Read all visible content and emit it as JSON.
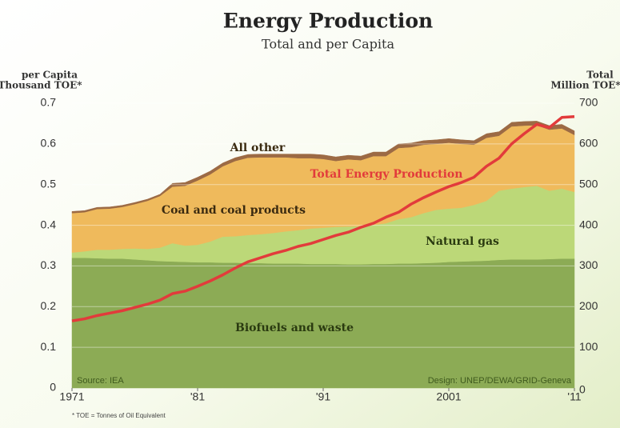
{
  "chart_data": {
    "type": "stacked-area-line",
    "title": "Energy Production",
    "subtitle": "Total and per Capita",
    "y_label": [
      "per Capita",
      "Thousand TOE*"
    ],
    "y2_label": [
      "Total",
      "Million TOE*"
    ],
    "source": "Source: IEA",
    "credit": "Design: UNEP/DEWA/GRID-Geneva",
    "footnote": "* TOE = Tonnes of Oil Equivalent",
    "x": [
      1971,
      1972,
      1973,
      1974,
      1975,
      1976,
      1977,
      1978,
      1979,
      1980,
      1981,
      1982,
      1983,
      1984,
      1985,
      1986,
      1987,
      1988,
      1989,
      1990,
      1991,
      1992,
      1993,
      1994,
      1995,
      1996,
      1997,
      1998,
      1999,
      2000,
      2001,
      2002,
      2003,
      2004,
      2005,
      2006,
      2007,
      2008,
      2009,
      2010,
      2011
    ],
    "xlim": [
      1971,
      2011
    ],
    "xticks": [
      1971,
      {
        "value": 1981,
        "label": "'81"
      },
      {
        "value": 1991,
        "label": "'91"
      },
      2001,
      {
        "value": 2011,
        "label": "'11"
      }
    ],
    "ylim": [
      0,
      0.7
    ],
    "yticks": [
      0,
      0.1,
      0.2,
      0.3,
      0.4,
      0.5,
      0.6,
      0.7
    ],
    "y2lim": [
      0,
      700
    ],
    "y2ticks": [
      0,
      100,
      200,
      300,
      400,
      500,
      600,
      700
    ],
    "grid": true,
    "series": [
      {
        "name": "Biofuels and waste",
        "kind": "area",
        "color": "#8cab55",
        "values": [
          0.32,
          0.32,
          0.319,
          0.318,
          0.318,
          0.316,
          0.314,
          0.312,
          0.311,
          0.31,
          0.309,
          0.309,
          0.308,
          0.308,
          0.307,
          0.307,
          0.306,
          0.306,
          0.306,
          0.305,
          0.305,
          0.305,
          0.304,
          0.304,
          0.305,
          0.305,
          0.306,
          0.306,
          0.307,
          0.308,
          0.31,
          0.311,
          0.312,
          0.313,
          0.315,
          0.316,
          0.316,
          0.316,
          0.317,
          0.318,
          0.318
        ]
      },
      {
        "name": "Natural gas",
        "kind": "area",
        "color": "#bcd878",
        "values": [
          0.013,
          0.016,
          0.021,
          0.022,
          0.024,
          0.027,
          0.028,
          0.033,
          0.045,
          0.04,
          0.043,
          0.051,
          0.064,
          0.065,
          0.069,
          0.071,
          0.075,
          0.079,
          0.082,
          0.087,
          0.089,
          0.091,
          0.093,
          0.094,
          0.096,
          0.1,
          0.109,
          0.114,
          0.123,
          0.13,
          0.131,
          0.132,
          0.138,
          0.147,
          0.17,
          0.174,
          0.178,
          0.181,
          0.168,
          0.172,
          0.164
        ]
      },
      {
        "name": "Coal and coal products",
        "kind": "area",
        "color": "#efba5c",
        "values": [
          0.097,
          0.096,
          0.1,
          0.101,
          0.103,
          0.109,
          0.118,
          0.127,
          0.139,
          0.147,
          0.158,
          0.165,
          0.173,
          0.185,
          0.19,
          0.189,
          0.186,
          0.182,
          0.177,
          0.173,
          0.169,
          0.162,
          0.165,
          0.162,
          0.169,
          0.165,
          0.175,
          0.172,
          0.168,
          0.162,
          0.162,
          0.157,
          0.148,
          0.155,
          0.135,
          0.153,
          0.151,
          0.149,
          0.15,
          0.148,
          0.14
        ]
      },
      {
        "name": "All other",
        "kind": "area",
        "color": "#9c6a44",
        "values": [
          0.004,
          0.004,
          0.004,
          0.004,
          0.004,
          0.004,
          0.004,
          0.004,
          0.008,
          0.008,
          0.008,
          0.008,
          0.008,
          0.008,
          0.008,
          0.008,
          0.008,
          0.008,
          0.01,
          0.01,
          0.01,
          0.01,
          0.01,
          0.01,
          0.01,
          0.01,
          0.01,
          0.01,
          0.01,
          0.01,
          0.01,
          0.01,
          0.01,
          0.01,
          0.01,
          0.01,
          0.01,
          0.01,
          0.01,
          0.01,
          0.01
        ]
      },
      {
        "name": "Total Energy Production",
        "kind": "line",
        "axis": "y2",
        "color": "#e23b3b",
        "values": [
          165,
          170,
          178,
          184,
          190,
          198,
          206,
          216,
          232,
          238,
          250,
          263,
          278,
          295,
          310,
          320,
          330,
          338,
          348,
          355,
          365,
          375,
          383,
          395,
          405,
          420,
          432,
          452,
          468,
          482,
          495,
          505,
          518,
          545,
          565,
          600,
          625,
          648,
          640,
          665,
          667
        ]
      }
    ]
  }
}
